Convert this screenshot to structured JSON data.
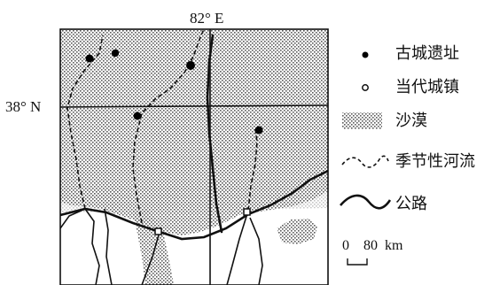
{
  "map": {
    "coordinates": {
      "meridian_label": "82° E",
      "parallel_label": "38° N"
    },
    "legend": [
      {
        "key": "ancient_city",
        "label": "古城遗址",
        "icon": "filled-dot-icon"
      },
      {
        "key": "modern_town",
        "label": "当代城镇",
        "icon": "hollow-circle-icon"
      },
      {
        "key": "desert",
        "label": "沙漠",
        "icon": "stipple-pattern-icon"
      },
      {
        "key": "seasonal_river",
        "label": "季节性河流",
        "icon": "dashed-line-icon"
      },
      {
        "key": "road",
        "label": "公路",
        "icon": "solid-curve-icon"
      }
    ],
    "scale": {
      "zero": "0",
      "value": "80",
      "unit": "km"
    },
    "colors": {
      "ink": "#111111",
      "desert_dot": "#555555",
      "background": "#ffffff"
    }
  }
}
